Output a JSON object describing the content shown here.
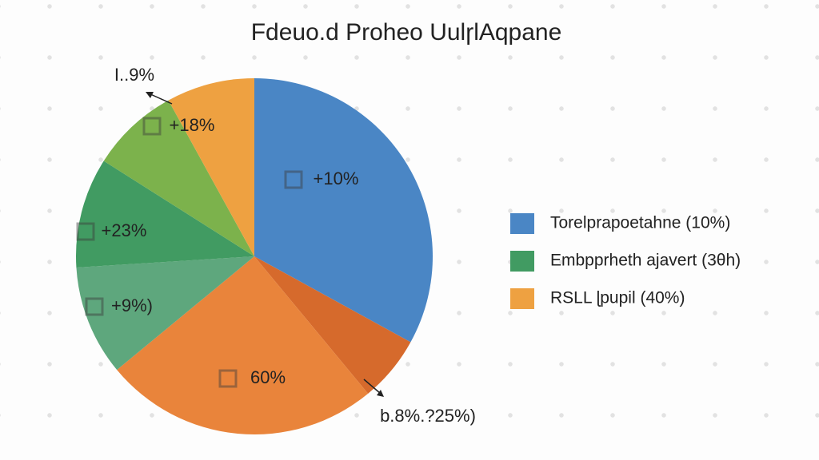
{
  "chart_data": {
    "type": "pie",
    "title": "Fdeuo.d Proheo UulɼlAqpane",
    "slices": [
      {
        "value": 33,
        "color": "#4a86c5",
        "label": "+10%"
      },
      {
        "value": 6,
        "color": "#d66a2c",
        "label": "b.8%.?25%)"
      },
      {
        "value": 25,
        "color": "#e9843b",
        "label": "60%"
      },
      {
        "value": 10,
        "color": "#5ea77d",
        "label": "+9%)"
      },
      {
        "value": 10,
        "color": "#419b62",
        "label": "+23%"
      },
      {
        "value": 8,
        "color": "#7cb24c",
        "label": "+18%"
      },
      {
        "value": 8,
        "color": "#eea141",
        "label": "I..9%"
      }
    ],
    "legend": [
      {
        "name": "Torelprapoetahne (10%)",
        "color": "#4a86c5"
      },
      {
        "name": "Embpprheth ajavert (3θh)",
        "color": "#419b62"
      },
      {
        "name": "RSLL ɭpupil (40%)",
        "color": "#eea141"
      }
    ]
  }
}
